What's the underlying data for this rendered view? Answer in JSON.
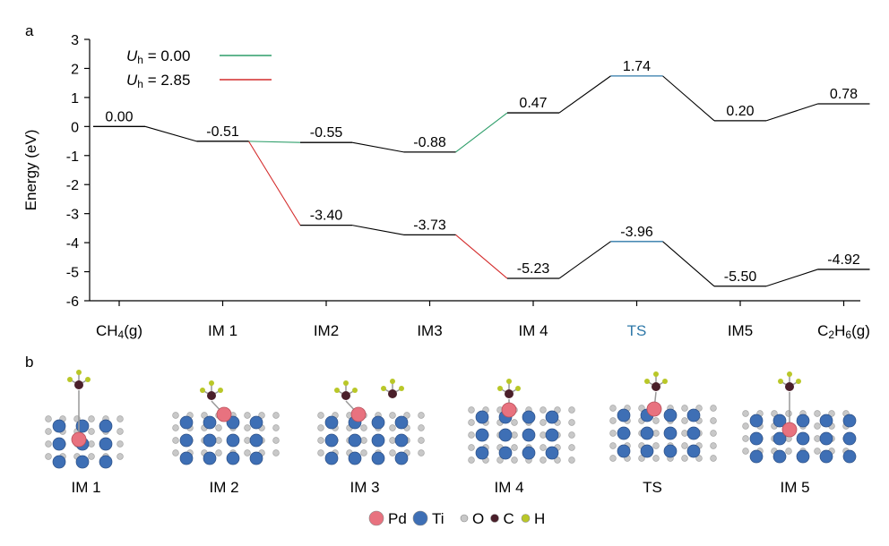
{
  "panel_labels": {
    "a": "a",
    "b": "b"
  },
  "chart_data": {
    "type": "line",
    "title": "",
    "xlabel": "",
    "ylabel": "Energy (eV)",
    "ylim": [
      -6,
      3
    ],
    "yticks": [
      3,
      2,
      1,
      0,
      -1,
      -2,
      -3,
      -4,
      -5,
      -6
    ],
    "categories": [
      "CH4(g)",
      "IM1",
      "IM2",
      "IM3",
      "IM4",
      "TS",
      "IM5",
      "C2H6(g)"
    ],
    "category_labels": [
      {
        "main": "CH",
        "sub": "4",
        "tail": "(g)"
      },
      {
        "main": "IM",
        "sub": "",
        "tail": " 1"
      },
      {
        "main": "IM",
        "sub": "",
        "tail": "2"
      },
      {
        "main": "IM",
        "sub": "",
        "tail": "3"
      },
      {
        "main": "IM",
        "sub": "",
        "tail": " 4"
      },
      {
        "main": "TS",
        "sub": "",
        "tail": ""
      },
      {
        "main": "IM",
        "sub": "",
        "tail": "5"
      },
      {
        "main": "C",
        "sub": "2",
        "tail": "H",
        "sub2": "6",
        "tail2": "(g)"
      }
    ],
    "highlight_category_index": 5,
    "highlight_color": "#2e78a8",
    "series": [
      {
        "name": "Uh = 0.00",
        "legend_symbol": "U",
        "legend_sub": "h",
        "legend_value": " = 0.00",
        "color": "#2e9e6a",
        "values": [
          0.0,
          -0.51,
          -0.55,
          -0.88,
          0.47,
          1.74,
          0.2,
          0.78
        ],
        "labels": [
          "0.00",
          "-0.51",
          "-0.55",
          "-0.88",
          "0.47",
          "1.74",
          "0.20",
          "0.78"
        ],
        "colored_connectors": [
          1,
          3
        ],
        "ts_level_color": "#2e78a8"
      },
      {
        "name": "Uh = 2.85",
        "legend_symbol": "U",
        "legend_sub": "h",
        "legend_value": " = 2.85",
        "color": "#d42b2b",
        "values": [
          null,
          -0.51,
          -3.4,
          -3.73,
          -5.23,
          -3.96,
          -5.5,
          -4.92
        ],
        "labels": [
          "",
          "",
          "-3.40",
          "-3.73",
          "-5.23",
          "-3.96",
          "-5.50",
          "-4.92"
        ],
        "colored_connectors": [
          1,
          3
        ],
        "ts_level_color": "#2e78a8"
      }
    ],
    "legend_location": "top-left"
  },
  "structures": {
    "labels": [
      "IM 1",
      "IM 2",
      "IM 3",
      "IM 4",
      "TS",
      "IM 5"
    ]
  },
  "element_legend": [
    {
      "symbol": "Pd",
      "color": "#e8727f"
    },
    {
      "symbol": "Ti",
      "color": "#3e6fb5"
    },
    {
      "symbol": "O",
      "color": "#c8c8c8"
    },
    {
      "symbol": "C",
      "color": "#4a1f2a"
    },
    {
      "symbol": "H",
      "color": "#b9c728"
    }
  ]
}
